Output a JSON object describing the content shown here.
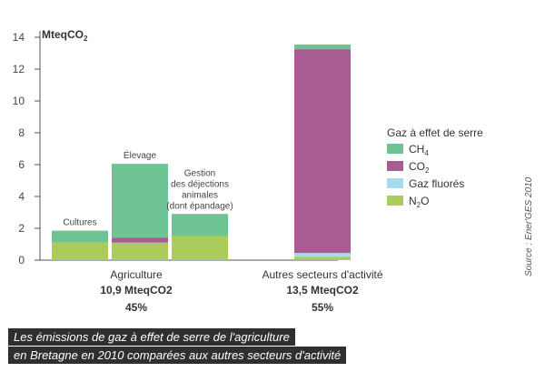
{
  "chart_data": {
    "type": "bar",
    "stacked": true,
    "ylabel": "MteqCO2",
    "ylim": [
      0,
      14
    ],
    "yticks": [
      0,
      2,
      4,
      6,
      8,
      10,
      12,
      14
    ],
    "grid": false,
    "legend_position": "right",
    "legend_title": "Gaz à effet de serre",
    "series": [
      {
        "key": "ch4",
        "name": "CH4",
        "color": "#6dc394"
      },
      {
        "key": "co2",
        "name": "CO2",
        "color": "#a85c92"
      },
      {
        "key": "fluo",
        "name": "Gaz fluorés",
        "color": "#a6dbe9"
      },
      {
        "key": "n2o",
        "name": "N2O",
        "color": "#a9cc5a"
      }
    ],
    "bars": [
      {
        "label": [
          "Cultures"
        ],
        "values": {
          "n2o": 1.1,
          "fluo": 0,
          "co2": 0,
          "ch4": 0.75
        }
      },
      {
        "label": [
          "Élevage"
        ],
        "values": {
          "n2o": 1.1,
          "fluo": 0,
          "co2": 0.3,
          "ch4": 4.65
        }
      },
      {
        "label": [
          "Gestion",
          "des déjections",
          "animales",
          "(dont épandage)"
        ],
        "values": {
          "n2o": 1.5,
          "fluo": 0,
          "co2": 0,
          "ch4": 1.4
        }
      },
      {
        "label": [],
        "values": {
          "n2o": 0.2,
          "fluo": 0.25,
          "co2": 12.8,
          "ch4": 0.3
        }
      }
    ],
    "groups": [
      {
        "name": "Agriculture",
        "total": "10,9 MteqCO2",
        "share": "45%"
      },
      {
        "name": "Autres secteurs d'activité",
        "total": "13,5 MteqCO2",
        "share": "55%"
      }
    ]
  },
  "source": "Source : Ener'GES 2010",
  "caption": {
    "line1": "Les émissions de gaz à effet de serre  de l'agriculture",
    "line2": "en Bretagne en 2010 comparées aux autres secteurs d'activité"
  }
}
